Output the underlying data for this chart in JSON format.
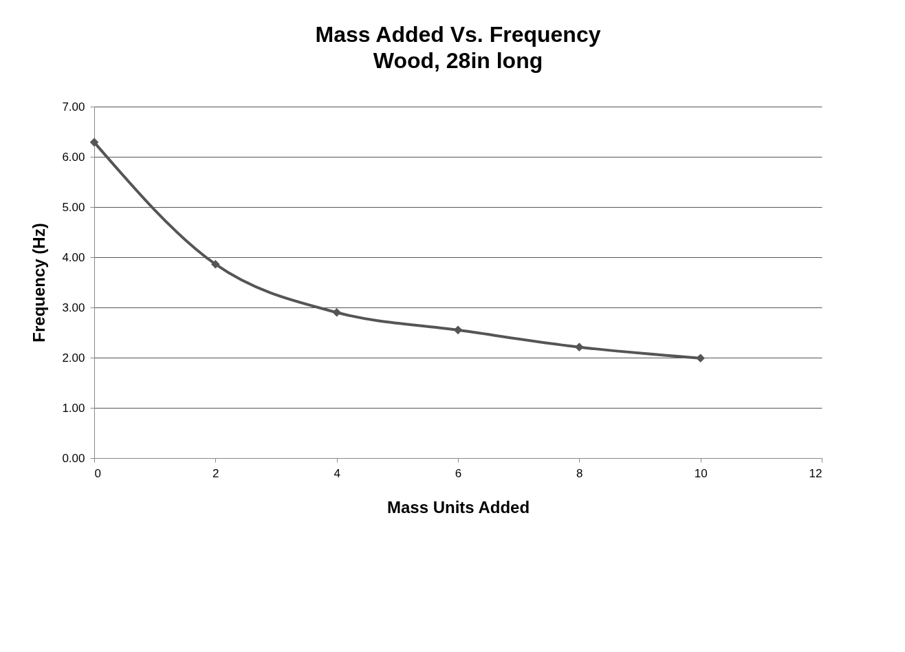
{
  "chart_data": {
    "type": "line",
    "title": "Mass Added Vs. Frequency",
    "subtitle": "Wood, 28in long",
    "xlabel": "Mass Units Added",
    "ylabel": "Frequency (Hz)",
    "x": [
      0,
      2,
      4,
      6,
      8,
      10
    ],
    "series": [
      {
        "color": "#555555",
        "values": [
          6.29,
          3.86,
          2.9,
          2.55,
          2.21,
          1.99
        ]
      }
    ],
    "xlim": [
      0,
      12
    ],
    "xticks": [
      0,
      2,
      4,
      6,
      8,
      10,
      12
    ],
    "ylim": [
      0,
      7
    ],
    "yticks": [
      {
        "value": 0,
        "label": "0.00"
      },
      {
        "value": 1,
        "label": "1.00"
      },
      {
        "value": 2,
        "label": "2.00"
      },
      {
        "value": 3,
        "label": "3.00"
      },
      {
        "value": 4,
        "label": "4.00"
      },
      {
        "value": 5,
        "label": "5.00"
      },
      {
        "value": 6,
        "label": "6.00"
      },
      {
        "value": 7,
        "label": "7.00"
      }
    ],
    "grid": "y",
    "marker": "diamond",
    "line_style": "solid",
    "legend": false
  }
}
